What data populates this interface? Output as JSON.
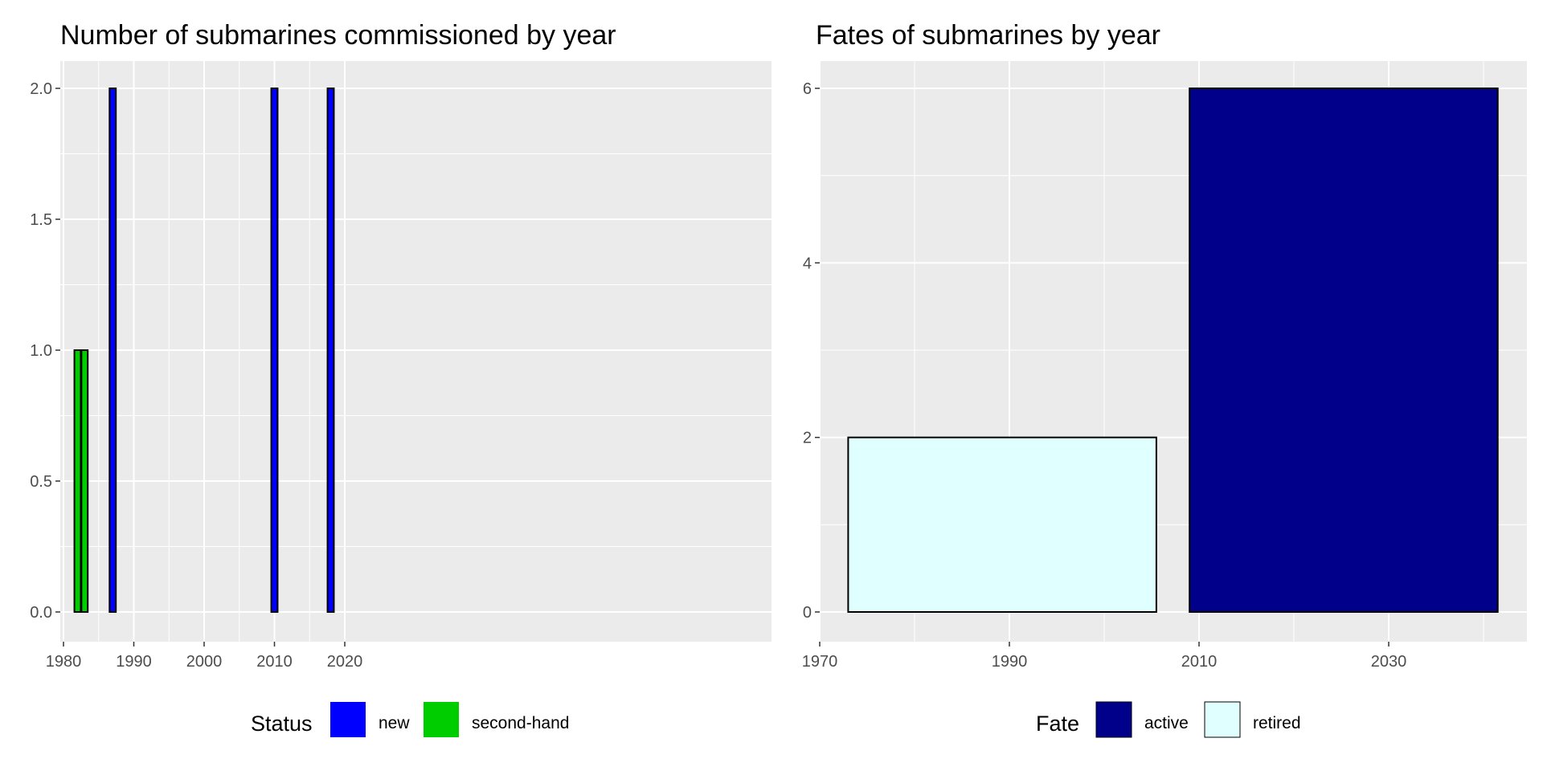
{
  "chart_data": [
    {
      "type": "bar",
      "title": "Number of submarines commissioned by year",
      "xlabel": "",
      "ylabel": "",
      "xlim": [
        1980,
        2020
      ],
      "ylim": [
        0,
        2
      ],
      "x_ticks": [
        "1980",
        "1990",
        "2000",
        "2010",
        "2020"
      ],
      "y_ticks": [
        "0.0",
        "0.5",
        "1.0",
        "1.5",
        "2.0"
      ],
      "grid": true,
      "legend": {
        "title": "Status",
        "position": "bottom",
        "entries": [
          {
            "label": "new",
            "color": "#0000ff"
          },
          {
            "label": "second-hand",
            "color": "#00cd00"
          }
        ]
      },
      "bars": [
        {
          "x": 1982,
          "y": 1,
          "status": "second-hand"
        },
        {
          "x": 1983,
          "y": 1,
          "status": "second-hand"
        },
        {
          "x": 1987,
          "y": 2,
          "status": "new"
        },
        {
          "x": 2010,
          "y": 2,
          "status": "new"
        },
        {
          "x": 2018,
          "y": 2,
          "status": "new"
        }
      ]
    },
    {
      "type": "bar",
      "title": "Fates of submarines by year",
      "xlabel": "",
      "ylabel": "",
      "xlim": [
        1970,
        2045
      ],
      "ylim": [
        0,
        6
      ],
      "x_ticks": [
        "1970",
        "1990",
        "2010",
        "2030"
      ],
      "y_ticks": [
        "0",
        "2",
        "4",
        "6"
      ],
      "grid": true,
      "legend": {
        "title": "Fate",
        "position": "bottom",
        "entries": [
          {
            "label": "active",
            "color": "#00008b"
          },
          {
            "label": "retired",
            "color": "#e0ffff"
          }
        ]
      },
      "bars": [
        {
          "x_start": 1973,
          "x_end": 2005.5,
          "y": 2,
          "fate": "retired"
        },
        {
          "x_start": 2009,
          "x_end": 2041.5,
          "y": 6,
          "fate": "active"
        }
      ]
    }
  ]
}
